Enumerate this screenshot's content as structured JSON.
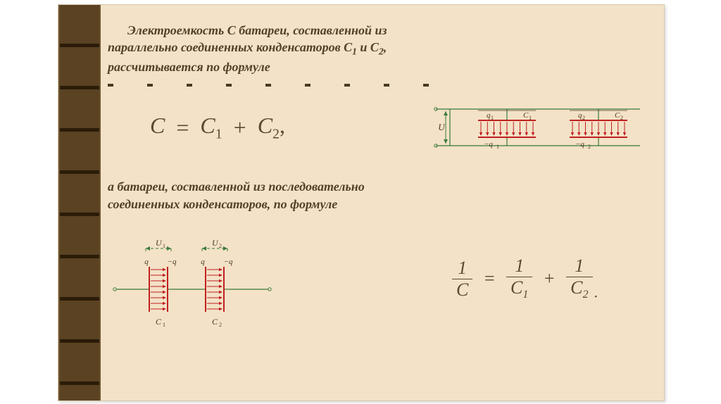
{
  "colors": {
    "page_bg": "#ffffff",
    "slide_bg": "#f3e2c7",
    "strip_bg": "#3a2a12",
    "strip_cell": "#5a4223",
    "strip_line": "#2a1c08",
    "text": "#534027",
    "formula": "#5b4a30",
    "wire": "#3a7a3a",
    "field_arrow": "#c02020",
    "label": "#4a3a22",
    "plate_gap": "#f3e2c7"
  },
  "typography": {
    "body_family": "Georgia, Times New Roman, serif",
    "body_italic": true,
    "body_bold": true,
    "body_size_pt": 14,
    "formula_family": "Times New Roman",
    "formula_big_pt": 24,
    "formula_small_pt": 20
  },
  "para1": {
    "line1": "Электроемкость C батареи, составленной из",
    "line2_a": "параллельно соединенных конденсаторов C",
    "line2_b": " и C",
    "line2_c": ",",
    "line3": "рассчитывается по формуле",
    "sub1": "1",
    "sub2": "2"
  },
  "formula1": {
    "lhs": "C",
    "eq": "=",
    "t1": "C",
    "s1": "1",
    "plus": "+",
    "t2": "C",
    "s2": "2",
    "comma": ","
  },
  "para2": {
    "line1": "а батареи, составленной из последовательно",
    "line2": "соединенных конденсаторов, по формуле"
  },
  "formula2": {
    "n1": "1",
    "d1": "C",
    "eq": "=",
    "n2": "1",
    "d2": "C",
    "ds2": "1",
    "plus": "+",
    "n3": "1",
    "d3": "C",
    "ds3": "2",
    "dot": "."
  },
  "diagram_parallel": {
    "U": "U",
    "q1p": "q",
    "q1s": "1",
    "nq1p": "−q",
    "nq1s": "1",
    "C1": "C",
    "C1s": "1",
    "q2p": "q",
    "q2s": "2",
    "nq2p": "−q",
    "nq2s": "2",
    "C2": "C",
    "C2s": "2",
    "wire_color": "#3a7a3a",
    "arrow_color": "#c02020",
    "n_arrows": 9,
    "plate_width": 82,
    "plate_gap": 24
  },
  "diagram_series": {
    "U1": "U",
    "U1s": "1",
    "U2": "U",
    "U2s": "2",
    "qp": "q",
    "nqp": "−q",
    "C1": "C",
    "C1s": "1",
    "C2": "C",
    "C2s": "2",
    "wire_color": "#3a7a3a",
    "arrow_color": "#c02020",
    "n_arrows": 8,
    "plate_width": 24,
    "plate_height": 64
  }
}
